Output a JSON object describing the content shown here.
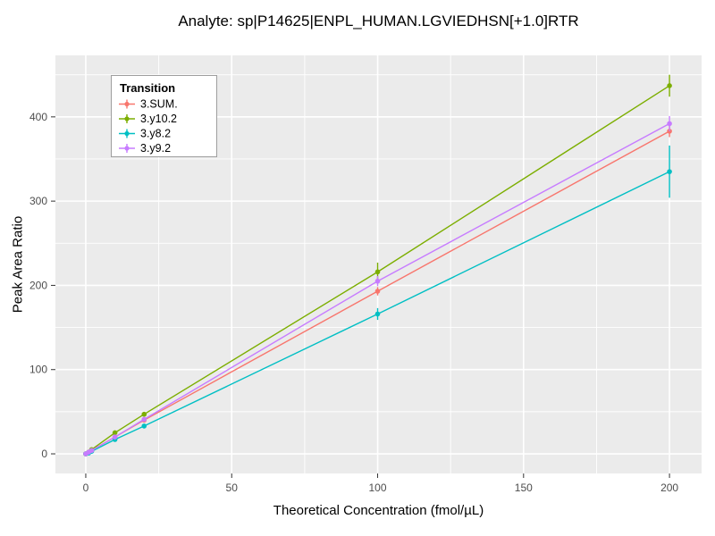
{
  "chart_data": {
    "type": "line",
    "title": "Analyte: sp|P14625|ENPL_HUMAN.LGVIEDHSN[+1.0]RTR",
    "xlabel": "Theoretical Concentration (fmol/µL)",
    "ylabel": "Peak Area Ratio",
    "xlim": [
      -10.4,
      211
    ],
    "ylim": [
      -23.3,
      473
    ],
    "x_ticks": [
      0,
      50,
      100,
      150,
      200
    ],
    "x_minor_ticks": [
      25,
      75,
      125,
      175
    ],
    "y_ticks": [
      0,
      100,
      200,
      300,
      400
    ],
    "y_minor_ticks": [
      50,
      150,
      250,
      350,
      450
    ],
    "grid": true,
    "panel_bg": "#EBEBEB",
    "grid_color": "#FFFFFF",
    "tick_label_color": "#4D4D4D",
    "legend_title": "Transition",
    "legend_position": "top-left-inside",
    "series": [
      {
        "name": "3.SUM.",
        "color": "#F8766D",
        "x": [
          0,
          1,
          2,
          10,
          20,
          100,
          200
        ],
        "y": [
          0,
          2,
          4,
          20,
          40,
          193,
          383
        ],
        "yerr": [
          0,
          0,
          0,
          1,
          2,
          5,
          7
        ]
      },
      {
        "name": "3.y10.2",
        "color": "#7CAE00",
        "x": [
          0,
          1,
          2,
          10,
          20,
          100,
          200
        ],
        "y": [
          0,
          2,
          5,
          25,
          47,
          216,
          437
        ],
        "yerr": [
          0,
          0,
          0,
          1,
          2,
          11,
          13
        ]
      },
      {
        "name": "3.y8.2",
        "color": "#00BFC4",
        "x": [
          0,
          1,
          2,
          10,
          20,
          100,
          200
        ],
        "y": [
          0,
          1,
          3,
          17,
          33,
          166,
          335
        ],
        "yerr": [
          0,
          0,
          0,
          1,
          2,
          7,
          31
        ]
      },
      {
        "name": "3.y9.2",
        "color": "#C77CFF",
        "x": [
          0,
          1,
          2,
          10,
          20,
          100,
          200
        ],
        "y": [
          0,
          2,
          4,
          20,
          41,
          205,
          392
        ],
        "yerr": [
          0,
          0,
          0,
          1,
          2,
          6,
          9
        ]
      }
    ]
  }
}
